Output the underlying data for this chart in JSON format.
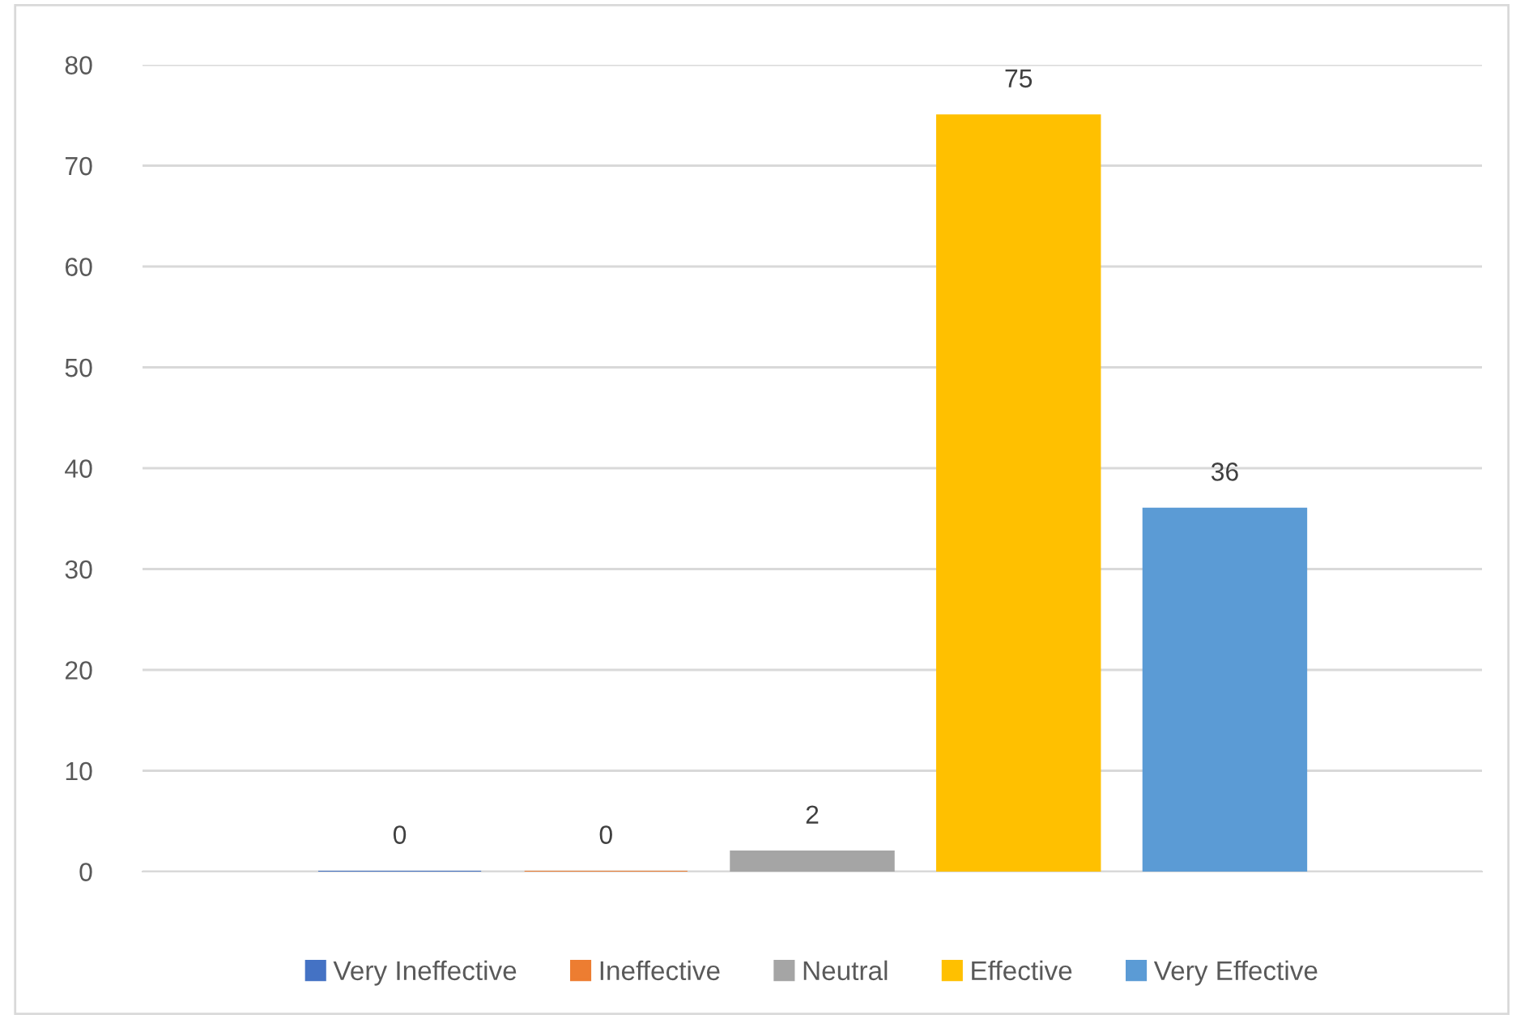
{
  "chart_data": {
    "type": "bar",
    "categories": [
      null
    ],
    "series": [
      {
        "name": "Very Ineffective",
        "color": "#4472c4",
        "values": [
          0
        ]
      },
      {
        "name": "Ineffective",
        "color": "#ed7d31",
        "values": [
          0
        ]
      },
      {
        "name": "Neutral",
        "color": "#a5a5a5",
        "values": [
          2
        ]
      },
      {
        "name": "Effective",
        "color": "#ffc000",
        "values": [
          75
        ]
      },
      {
        "name": "Very Effective",
        "color": "#5b9bd5",
        "values": [
          36
        ]
      }
    ],
    "ylim": [
      0,
      80
    ],
    "yticks": [
      0,
      10,
      20,
      30,
      40,
      50,
      60,
      70,
      80
    ],
    "grid": "y",
    "legend": "bottom",
    "data_labels": true
  }
}
